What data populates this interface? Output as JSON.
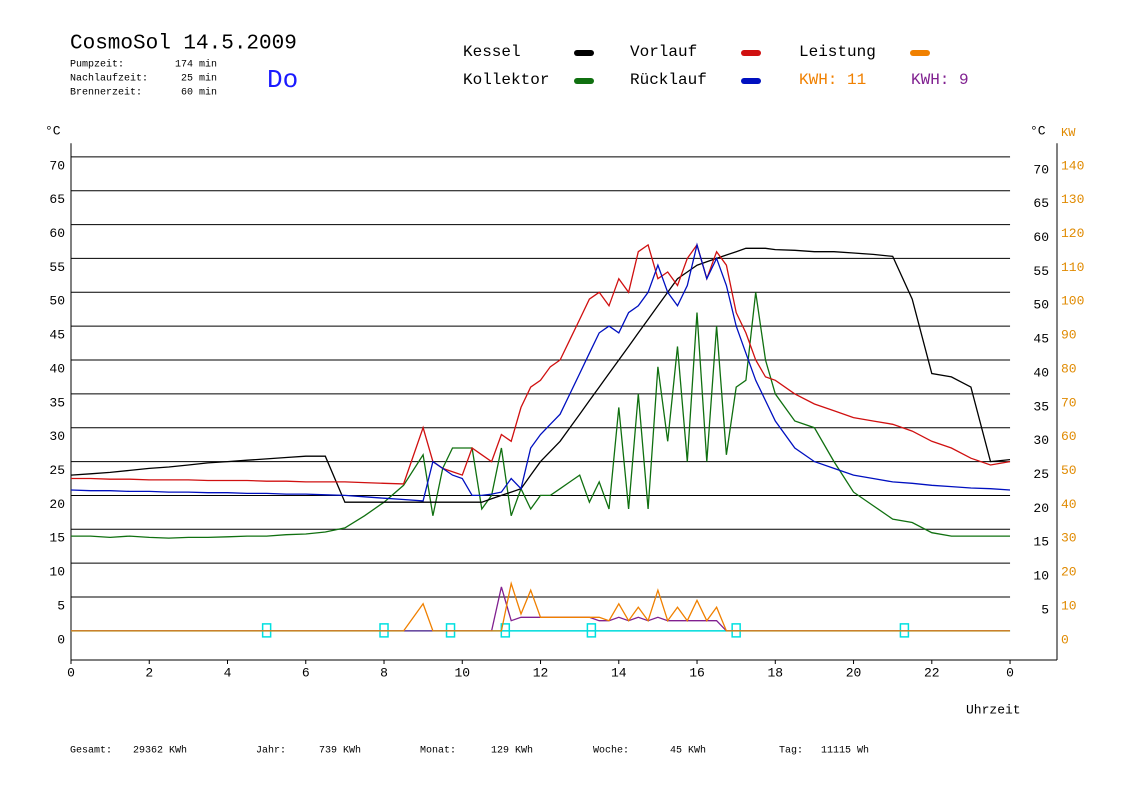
{
  "header": {
    "title": "CosmoSol 14.5.2009",
    "day": "Do",
    "stats": [
      {
        "label": "Pumpzeit:",
        "value": "174 min"
      },
      {
        "label": "Nachlaufzeit:",
        "value": "25 min"
      },
      {
        "label": "Brennerzeit:",
        "value": "60 min"
      }
    ]
  },
  "footer": [
    {
      "label": "Gesamt:",
      "value": "29362 KWh"
    },
    {
      "label": "Jahr:",
      "value": "739 KWh"
    },
    {
      "label": "Monat:",
      "value": "129 KWh"
    },
    {
      "label": "Woche:",
      "value": "45 KWh"
    },
    {
      "label": "Tag:",
      "value": "11115 Wh"
    }
  ],
  "chart_data": {
    "type": "line",
    "y_label": "°C",
    "y2_label_c": "°C",
    "y2_label": "KW",
    "x_label": "Uhrzeit",
    "xlim": [
      0,
      25.2
    ],
    "xticks": [
      0,
      2,
      4,
      6,
      8,
      10,
      12,
      14,
      16,
      18,
      20,
      22,
      {
        "value": 24,
        "label": "0"
      }
    ],
    "ylim": [
      -4.3,
      72
    ],
    "yticks": [
      0,
      5,
      10,
      15,
      20,
      25,
      30,
      35,
      40,
      45,
      50,
      55,
      60,
      65,
      70
    ],
    "y_right_ticks": [
      5,
      10,
      15,
      20,
      25,
      30,
      35,
      40,
      45,
      50,
      55,
      60,
      65,
      70
    ],
    "y2lim": [
      -8.6,
      144
    ],
    "y2ticks": [
      0,
      10,
      20,
      30,
      40,
      50,
      60,
      70,
      80,
      90,
      100,
      110,
      120,
      130,
      140
    ],
    "grid": true,
    "pump_markers_x": [
      5,
      8,
      9.7,
      11.1,
      13.3,
      17,
      21.3
    ],
    "pump_color": "#00e0e0",
    "x": [
      0,
      0.5,
      1,
      1.5,
      2,
      2.5,
      3,
      3.5,
      4,
      4.5,
      5,
      5.5,
      6,
      6.5,
      7,
      7.5,
      8,
      8.5,
      9,
      9.25,
      9.5,
      9.75,
      10,
      10.25,
      10.5,
      10.75,
      11,
      11.25,
      11.5,
      11.75,
      12,
      12.25,
      12.5,
      12.75,
      13,
      13.25,
      13.5,
      13.75,
      14,
      14.25,
      14.5,
      14.75,
      15,
      15.25,
      15.5,
      15.75,
      16,
      16.25,
      16.5,
      16.75,
      17,
      17.25,
      17.5,
      17.75,
      18,
      18.5,
      19,
      19.5,
      20,
      20.5,
      21,
      21.5,
      22,
      22.5,
      23,
      23.5,
      24
    ],
    "series": [
      {
        "name": "Kessel",
        "color": "#000000",
        "values": [
          23,
          23.2,
          23.4,
          23.7,
          24,
          24.2,
          24.5,
          24.8,
          25,
          25.2,
          25.4,
          25.6,
          25.8,
          25.8,
          19,
          19,
          19,
          19,
          19,
          19,
          19,
          19,
          19,
          19,
          19,
          19.5,
          20,
          20.5,
          21,
          23,
          25,
          26.5,
          28,
          30,
          32,
          34,
          36,
          38,
          40,
          42,
          44,
          46,
          48,
          50,
          52,
          53,
          54,
          54.5,
          55,
          55.5,
          56,
          56.5,
          56.5,
          56.5,
          56.3,
          56.2,
          56,
          56,
          55.8,
          55.6,
          55.3,
          49,
          38,
          37.5,
          36,
          25,
          25.3
        ]
      },
      {
        "name": "Vorlauf",
        "color": "#d01010",
        "values": [
          22.5,
          22.5,
          22.4,
          22.4,
          22.3,
          22.3,
          22.3,
          22.2,
          22.2,
          22.2,
          22.1,
          22.1,
          22,
          22,
          22,
          21.9,
          21.8,
          21.7,
          30,
          25,
          24,
          23.5,
          23,
          27,
          26,
          25,
          29,
          28,
          33,
          36,
          37,
          39,
          40,
          43,
          46,
          49,
          50,
          48,
          52,
          50,
          56,
          57,
          52,
          53,
          51,
          55,
          57,
          52,
          56,
          54,
          47,
          44,
          40,
          37.5,
          37,
          35,
          33.5,
          32.5,
          31.5,
          31,
          30.5,
          29.5,
          28,
          27,
          25.5,
          24.5,
          25
        ]
      },
      {
        "name": "Leistung",
        "color": "#f08000",
        "axis": "y2",
        "kwh_label": "KWH: 11",
        "values": [
          0,
          0,
          0,
          0,
          0,
          0,
          0,
          0,
          0,
          0,
          0,
          0,
          0,
          0,
          0,
          0,
          0,
          0,
          8,
          0,
          0,
          0,
          0,
          0,
          0,
          0,
          0,
          14,
          5,
          12,
          4,
          4,
          4,
          4,
          4,
          4,
          4,
          3,
          8,
          3,
          7,
          3,
          12,
          3,
          7,
          3,
          9,
          3,
          7,
          0,
          0,
          0,
          0,
          0,
          0,
          0,
          0,
          0,
          0,
          0,
          0,
          0,
          0,
          0,
          0,
          0,
          0
        ]
      },
      {
        "name": "Kollektor",
        "color": "#107010",
        "values": [
          14,
          14,
          13.8,
          14,
          13.8,
          13.7,
          13.8,
          13.8,
          13.9,
          14,
          14,
          14.2,
          14.3,
          14.6,
          15.2,
          17,
          19,
          21.5,
          26,
          17,
          24,
          27,
          27,
          27,
          18,
          20,
          27,
          17,
          21,
          18,
          20,
          20,
          21,
          22,
          23,
          19,
          22,
          18,
          33,
          18,
          35,
          18,
          39,
          28,
          42,
          25,
          47,
          25,
          45,
          26,
          36,
          37,
          50,
          40,
          35,
          31,
          30,
          25,
          20.5,
          18.5,
          16.5,
          16,
          14.5,
          14,
          14,
          14,
          14
        ]
      },
      {
        "name": "Rücklauf",
        "color": "#0010c0",
        "values": [
          20.8,
          20.7,
          20.7,
          20.6,
          20.6,
          20.5,
          20.5,
          20.4,
          20.4,
          20.3,
          20.3,
          20.2,
          20.2,
          20.1,
          20,
          19.8,
          19.6,
          19.4,
          19.2,
          25,
          24,
          23,
          22.5,
          20,
          20,
          20.2,
          20.5,
          22.5,
          21,
          27,
          29,
          30.5,
          32,
          35,
          38,
          41,
          44,
          45,
          44,
          47,
          48,
          50,
          54,
          50,
          48,
          51,
          57,
          52,
          55,
          51,
          45,
          41,
          37,
          34,
          31,
          27,
          25,
          24,
          23,
          22.5,
          22,
          21.8,
          21.5,
          21.3,
          21.1,
          21,
          20.8
        ]
      },
      {
        "name": "KWH: 9",
        "color": "#802090",
        "axis": "y2",
        "legend_marker": false,
        "values": [
          0,
          0,
          0,
          0,
          0,
          0,
          0,
          0,
          0,
          0,
          0,
          0,
          0,
          0,
          0,
          0,
          0,
          0,
          0,
          0,
          0,
          0,
          0,
          0,
          0,
          0,
          13,
          3,
          4,
          4,
          4,
          4,
          4,
          4,
          4,
          4,
          3,
          3,
          4,
          3,
          4,
          3,
          4,
          3,
          3,
          3,
          3,
          3,
          3,
          0,
          0,
          0,
          0,
          0,
          0,
          0,
          0,
          0,
          0,
          0,
          0,
          0,
          0,
          0,
          0,
          0,
          0
        ]
      }
    ]
  }
}
